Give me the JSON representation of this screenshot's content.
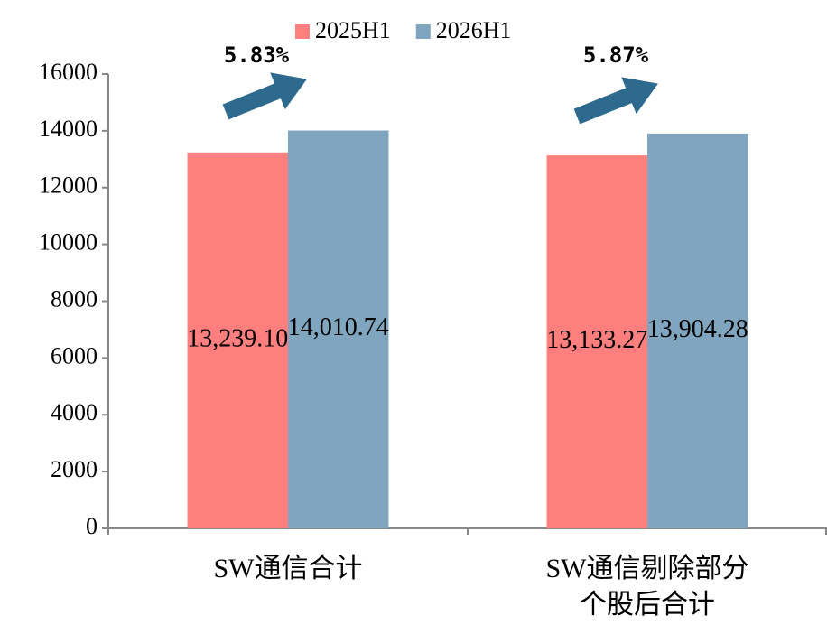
{
  "chart_data": {
    "type": "bar",
    "categories": [
      "SW通信合计",
      "SW通信剔除部分个股后合计"
    ],
    "series": [
      {
        "name": "2025H1",
        "color": "#FF7F7F",
        "values": [
          13239.1,
          13133.27
        ],
        "value_labels": [
          "13,239.10",
          "13,133.27"
        ]
      },
      {
        "name": "2026H1",
        "color": "#7FA5BF",
        "values": [
          14010.74,
          13904.28
        ],
        "value_labels": [
          "14,010.74",
          "13,904.28"
        ]
      }
    ],
    "annotations": [
      "5.83%",
      "5.87%"
    ],
    "ylim": [
      0,
      16000
    ],
    "yticks": [
      0,
      2000,
      4000,
      6000,
      8000,
      10000,
      12000,
      14000,
      16000
    ],
    "grid": false,
    "legend": "top"
  }
}
